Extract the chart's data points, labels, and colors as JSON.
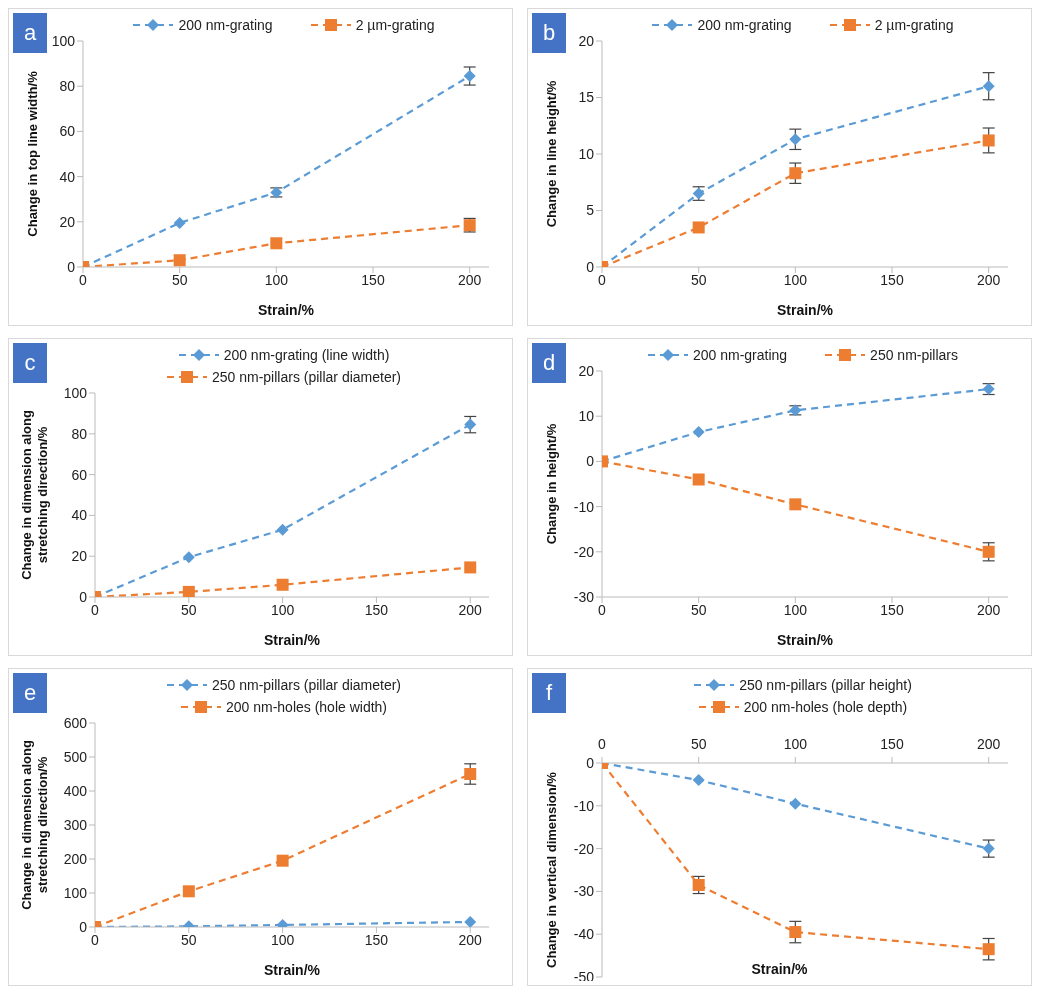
{
  "chart_data": [
    {
      "type": "line",
      "annotations": [
        "a"
      ],
      "xlabel": "Strain/%",
      "ylabel": "Change in top line width/%",
      "x": [
        0,
        50,
        100,
        200
      ],
      "xlim": [
        0,
        210
      ],
      "xticks": [
        0,
        50,
        100,
        150,
        200
      ],
      "ylim": [
        0,
        100
      ],
      "yticks": [
        0,
        20,
        40,
        60,
        80,
        100
      ],
      "legend": "top",
      "line_style": "dashed",
      "series": [
        {
          "name": "200 nm-grating",
          "color": "#5b9bd5",
          "marker": "diamond",
          "values": [
            0,
            19.5,
            33,
            84.5
          ],
          "errors": [
            null,
            null,
            2,
            4
          ]
        },
        {
          "name": "2 µm-grating",
          "color": "#ed7d31",
          "marker": "square",
          "values": [
            0,
            3,
            10.5,
            18.5
          ],
          "errors": [
            null,
            null,
            null,
            3
          ]
        }
      ]
    },
    {
      "type": "line",
      "annotations": [
        "b"
      ],
      "xlabel": "Strain/%",
      "ylabel": "Change in line height/%",
      "x": [
        0,
        50,
        100,
        200
      ],
      "xlim": [
        0,
        210
      ],
      "xticks": [
        0,
        50,
        100,
        150,
        200
      ],
      "ylim": [
        0,
        20
      ],
      "yticks": [
        0,
        5,
        10,
        15,
        20
      ],
      "legend": "top",
      "line_style": "dashed",
      "series": [
        {
          "name": "200 nm-grating",
          "color": "#5b9bd5",
          "marker": "diamond",
          "values": [
            0,
            6.5,
            11.3,
            16
          ],
          "errors": [
            null,
            0.6,
            0.9,
            1.2
          ]
        },
        {
          "name": "2 µm-grating",
          "color": "#ed7d31",
          "marker": "square",
          "values": [
            0,
            3.5,
            8.3,
            11.2
          ],
          "errors": [
            null,
            null,
            0.9,
            1.1
          ]
        }
      ]
    },
    {
      "type": "line",
      "annotations": [
        "c"
      ],
      "xlabel": "Strain/%",
      "ylabel": "Change in dimension along stretching direction/%",
      "x": [
        0,
        50,
        100,
        200
      ],
      "xlim": [
        0,
        210
      ],
      "xticks": [
        0,
        50,
        100,
        150,
        200
      ],
      "ylim": [
        0,
        100
      ],
      "yticks": [
        0,
        20,
        40,
        60,
        80,
        100
      ],
      "legend": "top",
      "line_style": "dashed",
      "series": [
        {
          "name": "200 nm-grating (line width)",
          "color": "#5b9bd5",
          "marker": "diamond",
          "values": [
            0,
            19.5,
            33,
            84.5
          ],
          "errors": [
            null,
            null,
            null,
            4
          ]
        },
        {
          "name": "250 nm-pillars (pillar diameter)",
          "color": "#ed7d31",
          "marker": "square",
          "values": [
            0,
            2.5,
            6,
            14.5
          ]
        }
      ]
    },
    {
      "type": "line",
      "annotations": [
        "d"
      ],
      "xlabel": "Strain/%",
      "ylabel": "Change in height/%",
      "x": [
        0,
        50,
        100,
        200
      ],
      "xlim": [
        0,
        210
      ],
      "xticks": [
        0,
        50,
        100,
        150,
        200
      ],
      "ylim": [
        -30,
        20
      ],
      "yticks": [
        -30,
        -20,
        -10,
        0,
        10,
        20
      ],
      "legend": "top",
      "line_style": "dashed",
      "series": [
        {
          "name": "200 nm-grating",
          "color": "#5b9bd5",
          "marker": "diamond",
          "values": [
            0,
            6.5,
            11.3,
            16
          ],
          "errors": [
            null,
            null,
            1,
            1.2
          ]
        },
        {
          "name": "250 nm-pillars",
          "color": "#ed7d31",
          "marker": "square",
          "values": [
            0,
            -4,
            -9.5,
            -20
          ],
          "errors": [
            null,
            null,
            null,
            2
          ]
        }
      ]
    },
    {
      "type": "line",
      "annotations": [
        "e"
      ],
      "xlabel": "Strain/%",
      "ylabel": "Change in dimension along stretching direction/%",
      "x": [
        0,
        50,
        100,
        200
      ],
      "xlim": [
        0,
        210
      ],
      "xticks": [
        0,
        50,
        100,
        150,
        200
      ],
      "ylim": [
        0,
        600
      ],
      "yticks": [
        0,
        100,
        200,
        300,
        400,
        500,
        600
      ],
      "legend": "top",
      "line_style": "dashed",
      "series": [
        {
          "name": "250 nm-pillars (pillar diameter)",
          "color": "#5b9bd5",
          "marker": "diamond",
          "values": [
            0,
            2,
            6,
            15
          ]
        },
        {
          "name": "200 nm-holes (hole width)",
          "color": "#ed7d31",
          "marker": "square",
          "values": [
            0,
            105,
            195,
            450
          ],
          "errors": [
            null,
            null,
            null,
            30
          ]
        }
      ]
    },
    {
      "type": "line",
      "annotations": [
        "f"
      ],
      "xlabel": "Strain/%",
      "ylabel": "Change in vertical dimension/%",
      "x": [
        0,
        50,
        100,
        200
      ],
      "xlim": [
        0,
        210
      ],
      "xticks": [
        0,
        50,
        100,
        150,
        200
      ],
      "ylim": [
        -50,
        0
      ],
      "yticks": [
        -50,
        -40,
        -30,
        -20,
        -10,
        0
      ],
      "legend": "top",
      "line_style": "dashed",
      "series": [
        {
          "name": "250 nm-pillars (pillar height)",
          "color": "#5b9bd5",
          "marker": "diamond",
          "values": [
            0,
            -4,
            -9.5,
            -20
          ],
          "errors": [
            null,
            null,
            null,
            2
          ]
        },
        {
          "name": "200 nm-holes (hole depth)",
          "color": "#ed7d31",
          "marker": "square",
          "values": [
            0,
            -28.5,
            -39.5,
            -43.5
          ],
          "errors": [
            null,
            2,
            2.5,
            2.5
          ]
        }
      ]
    }
  ]
}
